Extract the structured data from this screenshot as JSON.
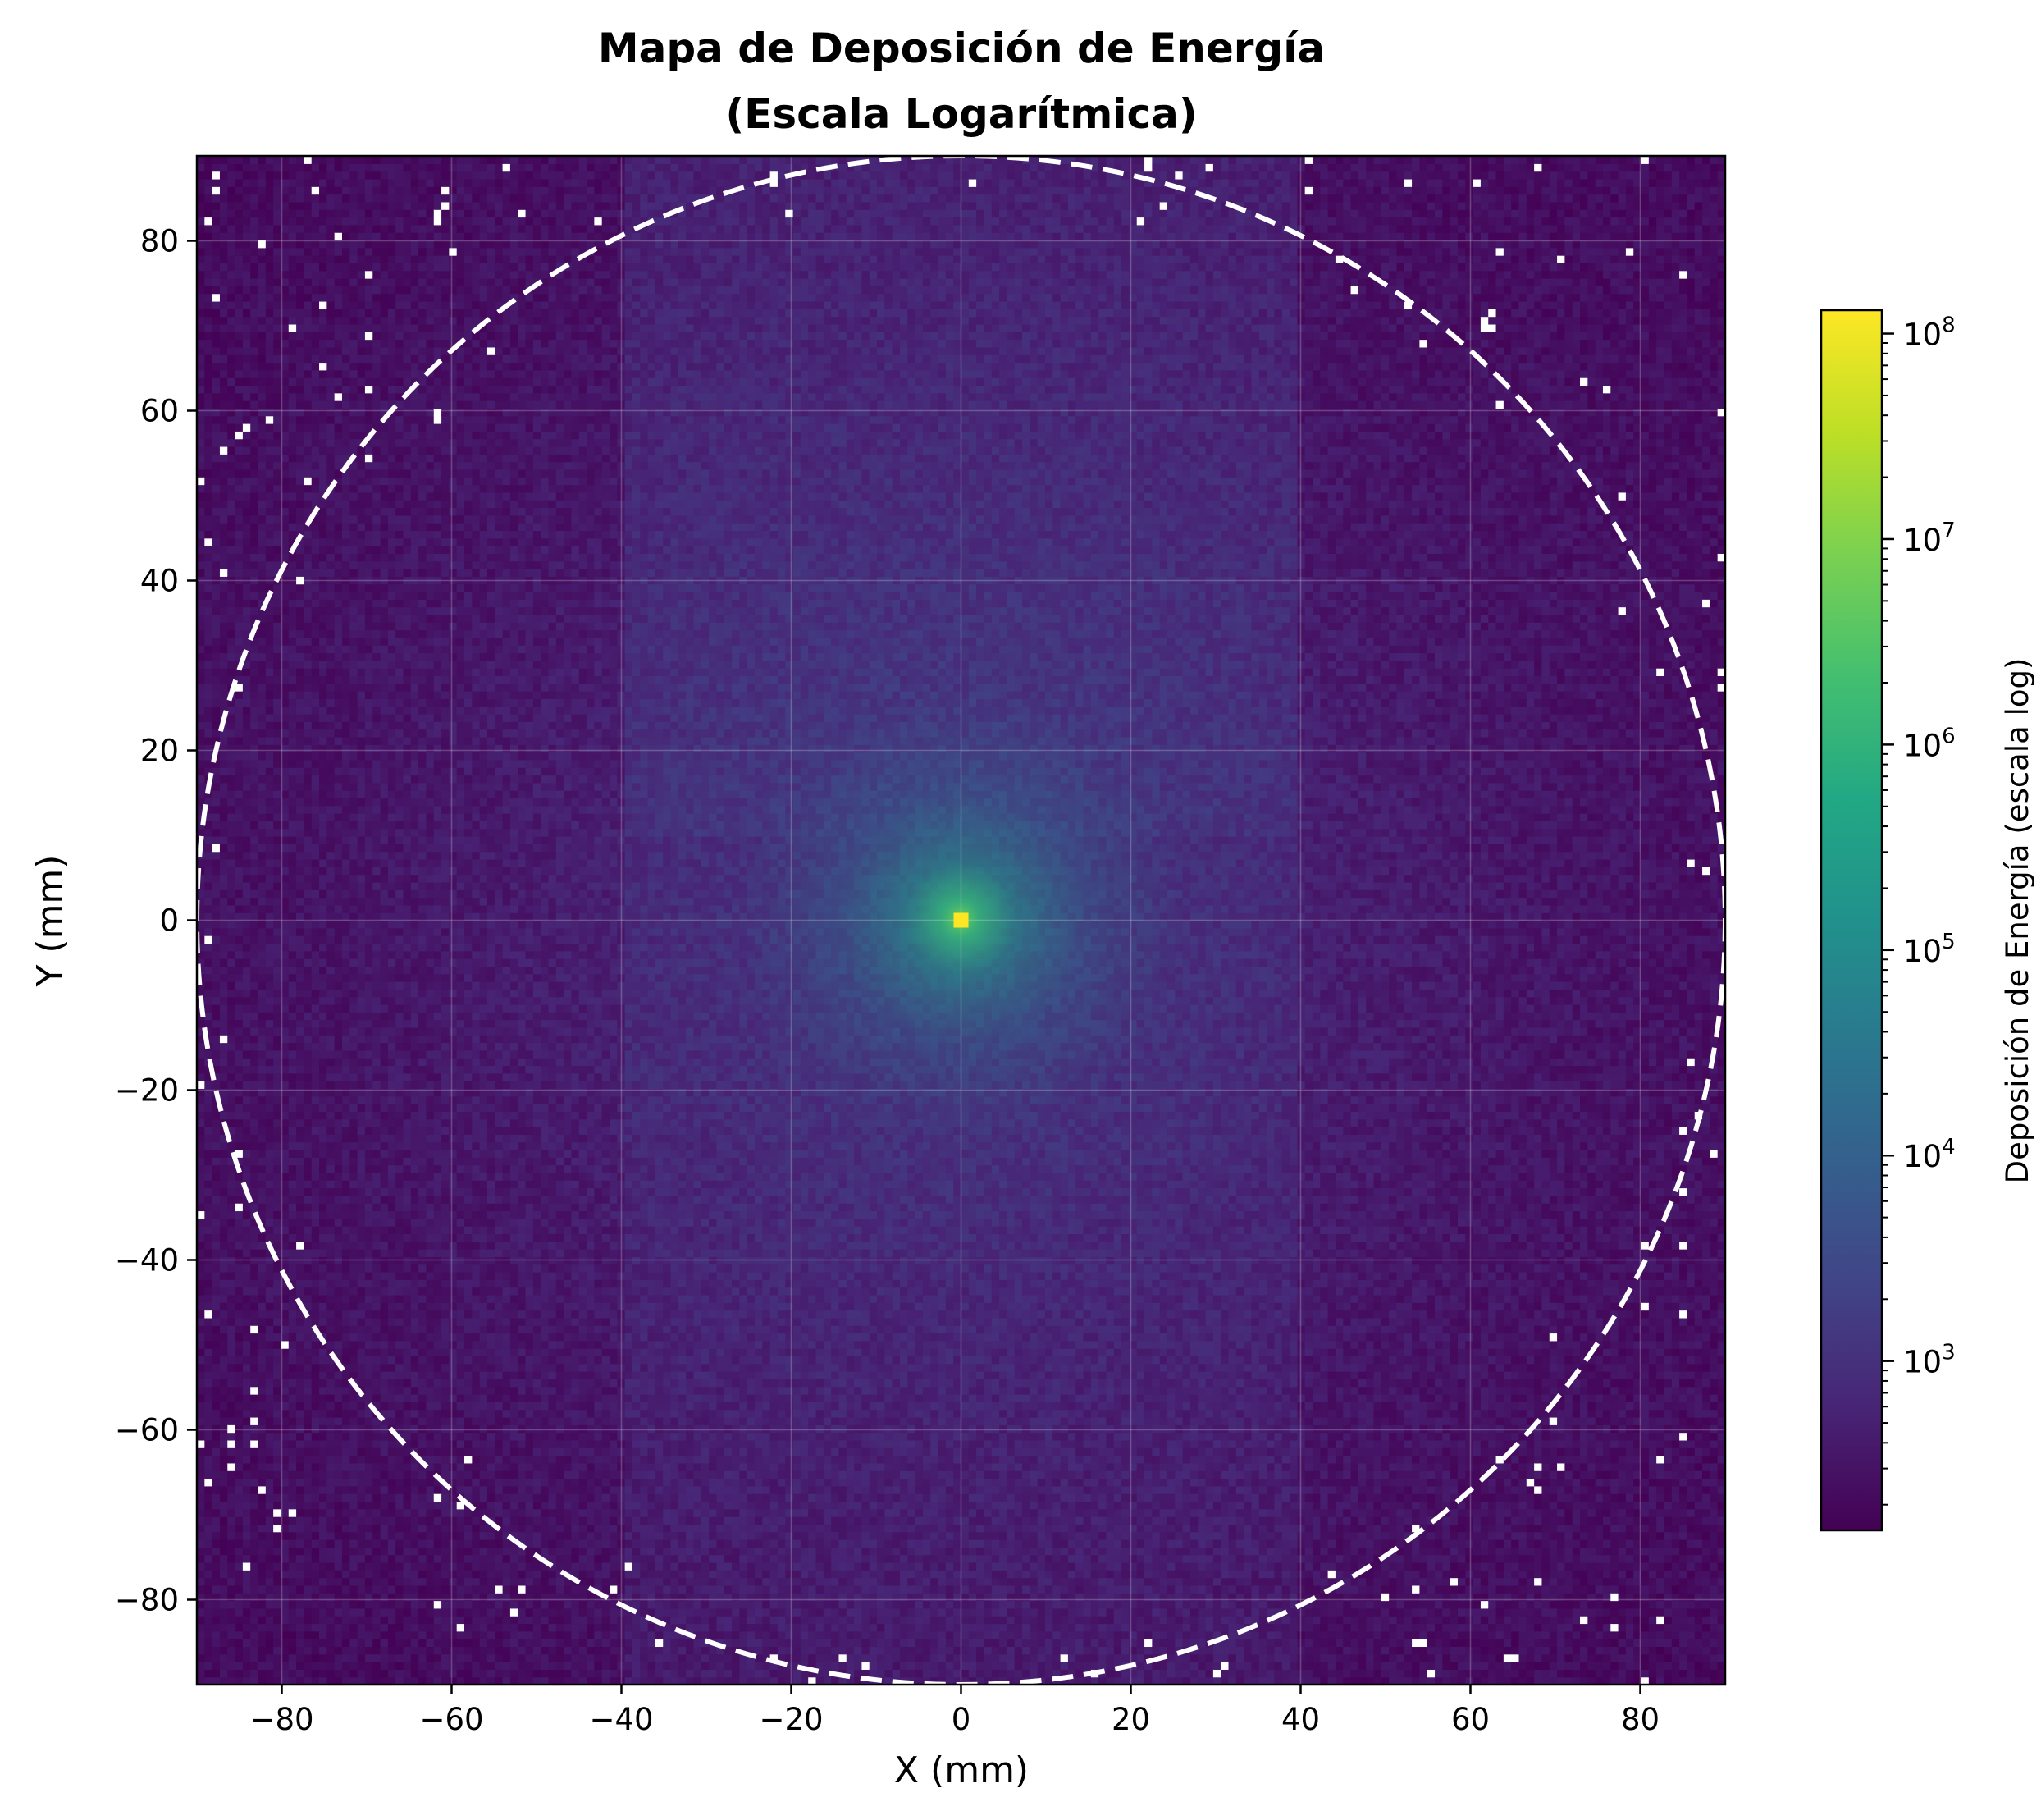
{
  "chart_data": {
    "type": "heatmap",
    "title_line1": "Mapa de Deposición de Energía",
    "title_line2": "(Escala Logarítmica)",
    "xlabel": "X (mm)",
    "ylabel": "Y (mm)",
    "xlim": [
      -90,
      90
    ],
    "ylim": [
      -90,
      90
    ],
    "x_ticks": [
      -80,
      -60,
      -40,
      -20,
      0,
      20,
      40,
      60,
      80
    ],
    "y_ticks": [
      -80,
      -60,
      -40,
      -20,
      0,
      20,
      40,
      60,
      80
    ],
    "x_tick_labels": [
      "−80",
      "−60",
      "−40",
      "−20",
      "0",
      "20",
      "40",
      "60",
      "80"
    ],
    "y_tick_labels": [
      "−80",
      "−60",
      "−40",
      "−20",
      "0",
      "20",
      "40",
      "60",
      "80"
    ],
    "grid": true,
    "colormap": "viridis",
    "colorbar": {
      "label": "Deposición de Energía (escala log)",
      "scale": "log",
      "min": 150,
      "max": 130000000,
      "major_ticks": [
        1000,
        10000,
        100000,
        1000000,
        10000000,
        100000000
      ],
      "tick_base": "10",
      "tick_exponents": [
        "3",
        "4",
        "5",
        "6",
        "7",
        "8"
      ]
    },
    "peak": {
      "x": 0,
      "y": 0,
      "value": 130000000
    },
    "background_value": 200,
    "enhanced_region": {
      "x": [
        -40,
        40
      ],
      "y": [
        -90,
        90
      ],
      "value_upper": 3000,
      "value_lower": 1500,
      "boundary_y": 10
    },
    "boundary_circle": {
      "center": [
        0,
        0
      ],
      "radius": 90,
      "style": "dashed",
      "color": "#ffffff"
    },
    "empty_bin_color": "#ffffff",
    "bin_width_mm": 0.9
  }
}
